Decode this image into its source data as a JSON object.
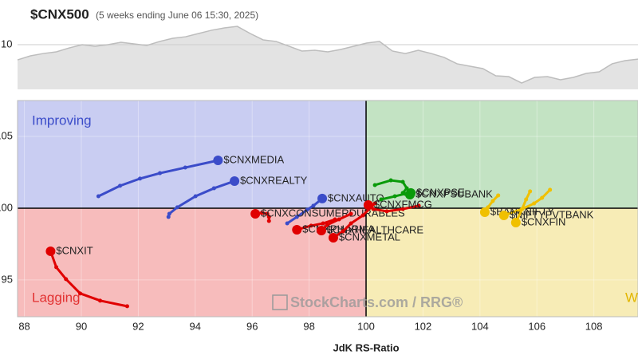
{
  "chart_data": [
    {
      "type": "area",
      "title": "$CNX500",
      "subtitle": "(5 weeks ending June 06 15:30, 2025)",
      "values": [
        8.64,
        9.0,
        9.21,
        9.36,
        9.71,
        10.0,
        9.86,
        10.0,
        10.21,
        10.07,
        9.93,
        10.29,
        10.57,
        10.71,
        11.0,
        11.29,
        11.5,
        11.64,
        11.0,
        10.43,
        10.29,
        9.86,
        9.43,
        9.5,
        9.36,
        9.57,
        9.86,
        10.14,
        10.29,
        9.43,
        9.21,
        9.5,
        9.21,
        8.86,
        8.29,
        8.07,
        7.86,
        7.21,
        7.14,
        6.57,
        7.07,
        7.14,
        6.86,
        7.07,
        7.43,
        7.57,
        8.29,
        8.57,
        8.71
      ],
      "color": "#bdbdbd",
      "ylim": [
        6,
        12
      ],
      "yticks": [
        10
      ],
      "grid": true
    },
    {
      "type": "rrg",
      "xlabel": "JdK RS-Ratio",
      "watermark": "StockCharts.com / RRG®",
      "xlim": [
        87.76,
        109.55
      ],
      "ylim": [
        92.44,
        107.5
      ],
      "xticks": [
        88,
        90,
        92,
        94,
        96,
        98,
        100,
        102,
        104,
        106,
        108
      ],
      "yticks": [
        95,
        100,
        105
      ],
      "quadrants": {
        "improving": {
          "label": "Improving",
          "color": "#3b4cc9",
          "fill": "#c9cdf2"
        },
        "lagging": {
          "label": "Lagging",
          "color": "#e23131",
          "fill": "#f7bcbc"
        },
        "weakening": {
          "label": "Weakening",
          "color": "#e2b600",
          "fill": "#f7ecb6"
        },
        "leading": {
          "fill": "#c3e3c3"
        }
      },
      "series": [
        {
          "name": "$CNXMEDIA",
          "color": "#3b4cc9",
          "x": [
            90.6,
            91.36,
            92.06,
            92.76,
            93.65,
            94.8
          ],
          "y": [
            100.83,
            101.56,
            102.06,
            102.44,
            102.83,
            103.33
          ]
        },
        {
          "name": "$CNXREALTY",
          "color": "#3b4cc9",
          "x": [
            93.06,
            93.09,
            93.37,
            94.01,
            94.66,
            95.38
          ],
          "y": [
            99.39,
            99.61,
            100.06,
            100.83,
            101.39,
            101.89
          ]
        },
        {
          "name": "$CNXAUTO",
          "color": "#3b4cc9",
          "x": [
            97.23,
            97.57,
            97.93,
            98.15,
            98.46
          ],
          "y": [
            98.94,
            99.39,
            99.89,
            100.17,
            100.67
          ]
        },
        {
          "name": "$CNXIT",
          "color": "#e00000",
          "x": [
            91.61,
            90.66,
            89.96,
            89.46,
            89.12,
            88.92
          ],
          "y": [
            93.17,
            93.56,
            94.06,
            95.06,
            95.89,
            97.0
          ]
        },
        {
          "name": "$CNXCONSUMERDURABLES",
          "color": "#e00000",
          "x": [
            96.59,
            96.59,
            96.53,
            96.34,
            96.11
          ],
          "y": [
            99.11,
            99.39,
            99.61,
            99.67,
            99.61
          ]
        },
        {
          "name": "$CNXPHARMA",
          "color": "#e00000",
          "x": [
            98.91,
            98.49,
            98.07,
            97.57
          ],
          "y": [
            99.22,
            98.94,
            98.78,
            98.5
          ]
        },
        {
          "name": "$CNXHEALTHCARE",
          "color": "#e00000",
          "x": [
            99.47,
            99.05,
            98.63,
            98.43
          ],
          "y": [
            99.61,
            99.22,
            98.83,
            98.44
          ]
        },
        {
          "name": "$CNXMETAL",
          "color": "#e00000",
          "x": [
            100.31,
            99.89,
            99.47,
            99.19,
            98.85
          ],
          "y": [
            100.33,
            99.5,
            98.94,
            98.39,
            97.94
          ]
        },
        {
          "name": "$CNXFMCG",
          "color": "#e00000",
          "x": [
            101.85,
            101.29,
            100.73,
            100.25,
            100.08
          ],
          "y": [
            100.17,
            99.94,
            99.78,
            99.94,
            100.22
          ]
        },
        {
          "name": "$CNXPSUBANK",
          "color": "#0a9a0a",
          "x": [
            100.31,
            100.87,
            101.29,
            101.43,
            101.29,
            101.54
          ],
          "y": [
            101.61,
            101.94,
            101.83,
            101.39,
            101.06,
            100.94
          ]
        },
        {
          "name": "$CNXPSE",
          "color": "#0a9a0a",
          "x": [
            100.53,
            101.01,
            101.37,
            101.57
          ],
          "y": [
            100.61,
            100.83,
            101.0,
            101.06
          ]
        },
        {
          "name": "$BANKNIFTY",
          "color": "#f0c000",
          "x": [
            104.64,
            104.45,
            104.28,
            104.17
          ],
          "y": [
            100.89,
            100.5,
            100.06,
            99.72
          ]
        },
        {
          "name": "$NIFTYPVTBANK",
          "color": "#f0c000",
          "x": [
            106.46,
            106.18,
            105.9,
            105.48,
            104.84
          ],
          "y": [
            101.28,
            100.72,
            100.33,
            99.94,
            99.5
          ]
        },
        {
          "name": "$CNXFIN",
          "color": "#f0c000",
          "x": [
            105.76,
            105.62,
            105.48,
            105.26
          ],
          "y": [
            101.17,
            100.61,
            99.94,
            99.0
          ]
        }
      ]
    }
  ]
}
